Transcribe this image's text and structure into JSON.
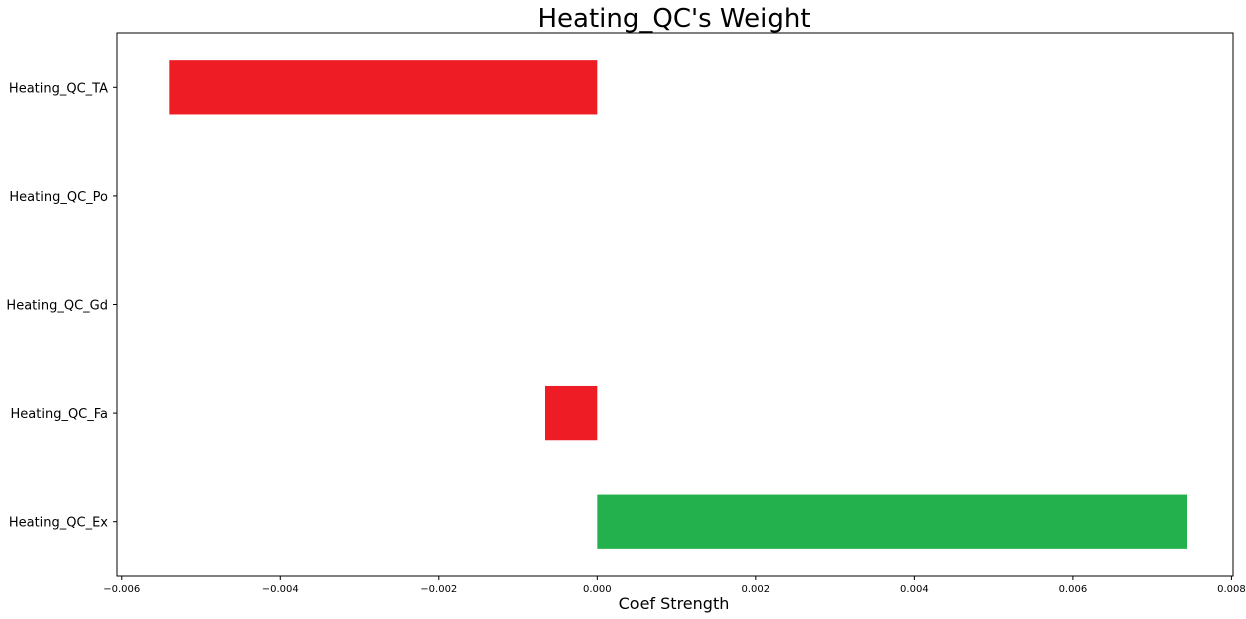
{
  "chart_data": {
    "type": "bar",
    "orientation": "horizontal",
    "title": "Heating_QC's Weight",
    "xlabel": "Coef Strength",
    "ylabel": "",
    "categories": [
      "Heating_QC_TA",
      "Heating_QC_Po",
      "Heating_QC_Gd",
      "Heating_QC_Fa",
      "Heating_QC_Ex"
    ],
    "values": [
      -0.0054,
      0.0,
      0.0,
      -0.00066,
      0.00744
    ],
    "xlim": [
      -0.00606,
      0.00802
    ],
    "xticks": [
      -0.006,
      -0.004,
      -0.002,
      0.0,
      0.002,
      0.004,
      0.006,
      0.008
    ],
    "xtick_labels": [
      "−0.006",
      "−0.004",
      "−0.002",
      "0.000",
      "0.002",
      "0.004",
      "0.006",
      "0.008"
    ],
    "grid": false,
    "colors": {
      "negative": "#ee1c25",
      "positive": "#22b14c",
      "axis": "#000000",
      "background": "#ffffff"
    }
  }
}
